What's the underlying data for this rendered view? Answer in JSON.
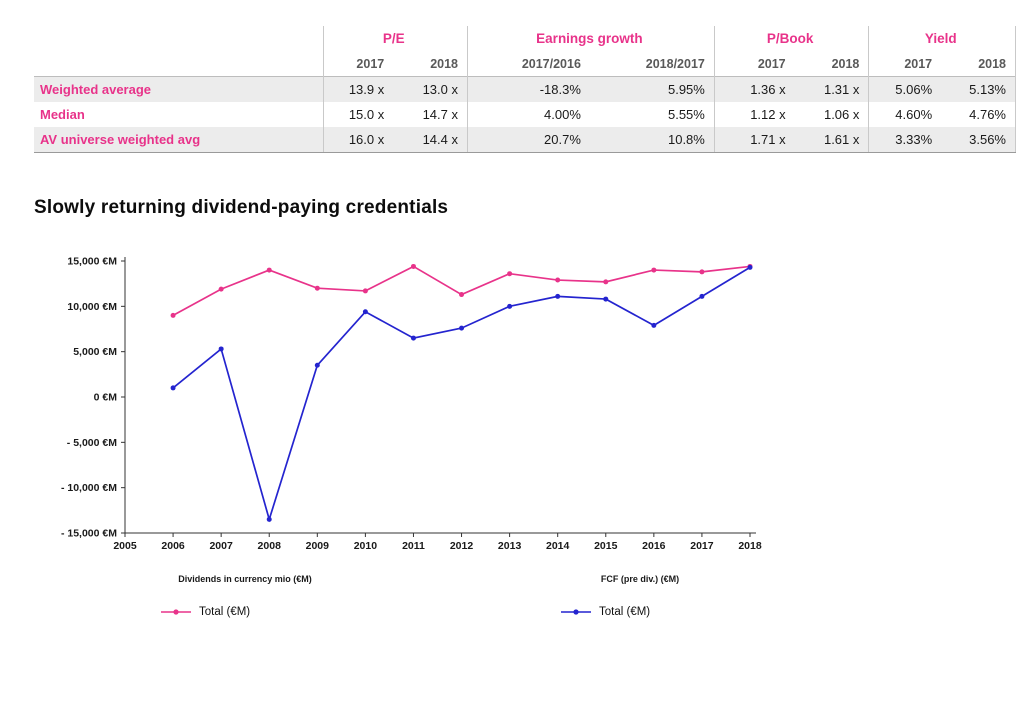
{
  "table": {
    "groups": [
      {
        "label": "P/E"
      },
      {
        "label": "Earnings growth"
      },
      {
        "label": "P/Book"
      },
      {
        "label": "Yield"
      }
    ],
    "subheaders": [
      "2017",
      "2018",
      "2017/2016",
      "2018/2017",
      "2017",
      "2018",
      "2017",
      "2018"
    ],
    "rows": [
      {
        "label": "Weighted average",
        "shaded": true,
        "values": [
          "13.9 x",
          "13.0 x",
          "-18.3%",
          "5.95%",
          "1.36 x",
          "1.31 x",
          "5.06%",
          "5.13%"
        ]
      },
      {
        "label": "Median",
        "shaded": false,
        "values": [
          "15.0 x",
          "14.7 x",
          "4.00%",
          "5.55%",
          "1.12 x",
          "1.06 x",
          "4.60%",
          "4.76%"
        ]
      },
      {
        "label": "AV universe weighted avg",
        "shaded": true,
        "values": [
          "16.0 x",
          "14.4 x",
          "20.7%",
          "10.8%",
          "1.71 x",
          "1.61 x",
          "3.33%",
          "3.56%"
        ]
      }
    ]
  },
  "heading": "Slowly returning dividend-paying credentials",
  "chart_data": {
    "type": "line",
    "x": [
      2006,
      2007,
      2008,
      2009,
      2010,
      2011,
      2012,
      2013,
      2014,
      2015,
      2016,
      2017,
      2018
    ],
    "series": [
      {
        "name": "Dividends in currency mio (€M)",
        "legend": "Total (€M)",
        "color": "#e8338a",
        "values": [
          9000,
          11900,
          14000,
          12000,
          11700,
          14400,
          11300,
          13600,
          12900,
          12700,
          14000,
          13800,
          14400
        ]
      },
      {
        "name": "FCF (pre div.) (€M)",
        "legend": "Total (€M)",
        "color": "#2424cf",
        "values": [
          1000,
          5300,
          -13500,
          3500,
          9400,
          6500,
          7600,
          10000,
          11100,
          10800,
          7900,
          11100,
          14300
        ]
      }
    ],
    "xlim": [
      2005,
      2018
    ],
    "ylim": [
      -15000,
      15000
    ],
    "xticks": [
      2005,
      2006,
      2007,
      2008,
      2009,
      2010,
      2011,
      2012,
      2013,
      2014,
      2015,
      2016,
      2017,
      2018
    ],
    "yticks": [
      {
        "value": 15000,
        "label": "15,000 €M"
      },
      {
        "value": 10000,
        "label": "10,000 €M"
      },
      {
        "value": 5000,
        "label": "5,000 €M"
      },
      {
        "value": 0,
        "label": "0 €M"
      },
      {
        "value": -5000,
        "label": "- 5,000 €M"
      },
      {
        "value": -10000,
        "label": "- 10,000 €M"
      },
      {
        "value": -15000,
        "label": "- 15,000 €M"
      }
    ],
    "axis_captions": [
      "Dividends in currency mio (€M)",
      "FCF (pre div.) (€M)"
    ],
    "legend_entries": [
      {
        "label": "Total (€M)",
        "color": "#e8338a"
      },
      {
        "label": "Total (€M)",
        "color": "#2424cf"
      }
    ],
    "title": "",
    "grid": false,
    "legend_position": "bottom"
  },
  "colors": {
    "pink": "#e8338a",
    "blue": "#2424cf",
    "row_shade": "#ececec"
  }
}
